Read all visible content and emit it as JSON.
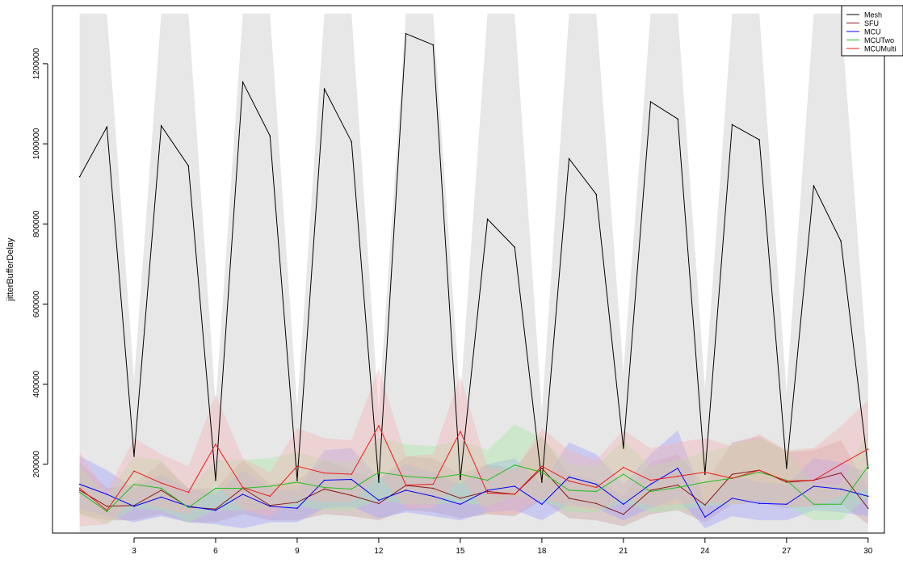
{
  "chart_data": {
    "type": "line",
    "title": "",
    "xlabel": "",
    "ylabel": "jitterBufferDelay",
    "x": [
      1,
      2,
      3,
      4,
      5,
      6,
      7,
      8,
      9,
      10,
      11,
      12,
      13,
      14,
      15,
      16,
      17,
      18,
      19,
      20,
      21,
      22,
      23,
      24,
      25,
      26,
      27,
      28,
      29,
      30
    ],
    "x_ticks": [
      3,
      6,
      9,
      12,
      15,
      18,
      21,
      24,
      27,
      30
    ],
    "y_ticks": [
      200000,
      400000,
      600000,
      800000,
      1000000,
      1200000
    ],
    "xlim": [
      0,
      30.6
    ],
    "ylim": [
      28000,
      1345000
    ],
    "grid": false,
    "legend_position": "top-right",
    "series": [
      {
        "name": "Mesh",
        "color": "#000000",
        "band_color": "#d3d3d3",
        "values": [
          918000,
          1042000,
          220000,
          1045000,
          945000,
          160000,
          1154000,
          1020000,
          160000,
          1137000,
          1005000,
          155000,
          1275000,
          1247000,
          162000,
          812000,
          742000,
          155000,
          963000,
          874000,
          240000,
          1105000,
          1062000,
          175000,
          1048000,
          1010000,
          190000,
          895000,
          757000,
          190000
        ],
        "lower": [
          28000,
          28000,
          28000,
          28000,
          28000,
          28000,
          28000,
          28000,
          28000,
          28000,
          28000,
          28000,
          28000,
          28000,
          28000,
          28000,
          28000,
          28000,
          28000,
          28000,
          28000,
          28000,
          28000,
          28000,
          28000,
          28000,
          28000,
          28000,
          28000,
          28000
        ],
        "upper": [
          1325000,
          1325000,
          410000,
          1325000,
          1325000,
          350000,
          1325000,
          1325000,
          340000,
          1325000,
          1325000,
          330000,
          1325000,
          1325000,
          360000,
          1325000,
          1325000,
          330000,
          1325000,
          1325000,
          430000,
          1325000,
          1325000,
          390000,
          1325000,
          1325000,
          380000,
          1325000,
          1325000,
          420000
        ]
      },
      {
        "name": "SFU",
        "color": "#8b1a1a",
        "band_color": "#c8a0a0",
        "values": [
          135000,
          95000,
          97000,
          135000,
          93000,
          88000,
          140000,
          97000,
          105000,
          138000,
          122000,
          102000,
          147000,
          140000,
          115000,
          132000,
          125000,
          190000,
          115000,
          102000,
          75000,
          135000,
          148000,
          98000,
          175000,
          185000,
          155000,
          160000,
          178000,
          90000
        ],
        "lower": [
          75000,
          60000,
          60000,
          75000,
          55000,
          55000,
          75000,
          60000,
          60000,
          75000,
          70000,
          60000,
          85000,
          80000,
          65000,
          75000,
          70000,
          110000,
          65000,
          60000,
          45000,
          75000,
          85000,
          55000,
          100000,
          105000,
          90000,
          95000,
          100000,
          50000
        ],
        "upper": [
          205000,
          140000,
          150000,
          205000,
          140000,
          140000,
          210000,
          150000,
          160000,
          210000,
          185000,
          160000,
          220000,
          215000,
          175000,
          200000,
          190000,
          270000,
          175000,
          160000,
          120000,
          205000,
          225000,
          150000,
          255000,
          270000,
          230000,
          235000,
          260000,
          140000
        ]
      },
      {
        "name": "MCU",
        "color": "#0000ff",
        "band_color": "#9fa0ff",
        "values": [
          150000,
          125000,
          95000,
          118000,
          95000,
          85000,
          125000,
          95000,
          90000,
          160000,
          162000,
          110000,
          135000,
          120000,
          100000,
          135000,
          145000,
          100000,
          168000,
          150000,
          100000,
          150000,
          190000,
          68000,
          115000,
          102000,
          100000,
          145000,
          138000,
          120000
        ],
        "lower": [
          90000,
          70000,
          55000,
          70000,
          55000,
          50000,
          40000,
          55000,
          55000,
          90000,
          95000,
          65000,
          80000,
          70000,
          60000,
          80000,
          85000,
          60000,
          100000,
          90000,
          60000,
          90000,
          115000,
          40000,
          70000,
          60000,
          60000,
          85000,
          80000,
          70000
        ],
        "upper": [
          220000,
          185000,
          140000,
          175000,
          140000,
          125000,
          185000,
          140000,
          135000,
          235000,
          240000,
          165000,
          200000,
          180000,
          150000,
          200000,
          215000,
          150000,
          255000,
          225000,
          150000,
          225000,
          285000,
          105000,
          170000,
          155000,
          150000,
          215000,
          205000,
          180000
        ]
      },
      {
        "name": "MCUTwo",
        "color": "#22c022",
        "band_color": "#a8e8a8",
        "values": [
          130000,
          82000,
          150000,
          140000,
          92000,
          140000,
          140000,
          145000,
          155000,
          142000,
          138000,
          180000,
          170000,
          165000,
          175000,
          160000,
          198000,
          180000,
          135000,
          132000,
          175000,
          132000,
          142000,
          155000,
          165000,
          180000,
          160000,
          100000,
          100000,
          195000
        ],
        "lower": [
          75000,
          50000,
          90000,
          85000,
          55000,
          85000,
          85000,
          90000,
          95000,
          85000,
          85000,
          110000,
          100000,
          100000,
          105000,
          95000,
          120000,
          110000,
          80000,
          80000,
          105000,
          80000,
          85000,
          95000,
          100000,
          110000,
          95000,
          60000,
          60000,
          120000
        ],
        "upper": [
          195000,
          120000,
          220000,
          210000,
          135000,
          210000,
          210000,
          215000,
          230000,
          210000,
          205000,
          265000,
          250000,
          245000,
          260000,
          235000,
          300000,
          265000,
          200000,
          195000,
          260000,
          195000,
          210000,
          230000,
          245000,
          265000,
          235000,
          150000,
          150000,
          285000
        ]
      },
      {
        "name": "MCUMulti",
        "color": "#ee1c1c",
        "band_color": "#f4b4b4",
        "values": [
          140000,
          85000,
          183000,
          153000,
          130000,
          250000,
          142000,
          120000,
          195000,
          178000,
          175000,
          296000,
          148000,
          150000,
          282000,
          128000,
          125000,
          195000,
          158000,
          142000,
          192000,
          160000,
          170000,
          180000,
          165000,
          185000,
          158000,
          160000,
          200000,
          238000
        ],
        "lower": [
          45000,
          50000,
          110000,
          90000,
          75000,
          150000,
          85000,
          70000,
          115000,
          105000,
          105000,
          175000,
          90000,
          90000,
          165000,
          75000,
          75000,
          115000,
          95000,
          85000,
          115000,
          95000,
          100000,
          105000,
          100000,
          110000,
          95000,
          95000,
          120000,
          140000
        ],
        "upper": [
          230000,
          130000,
          265000,
          225000,
          195000,
          375000,
          215000,
          180000,
          290000,
          265000,
          260000,
          440000,
          220000,
          225000,
          420000,
          190000,
          185000,
          290000,
          235000,
          210000,
          285000,
          240000,
          255000,
          265000,
          245000,
          275000,
          235000,
          240000,
          295000,
          360000
        ]
      }
    ]
  }
}
